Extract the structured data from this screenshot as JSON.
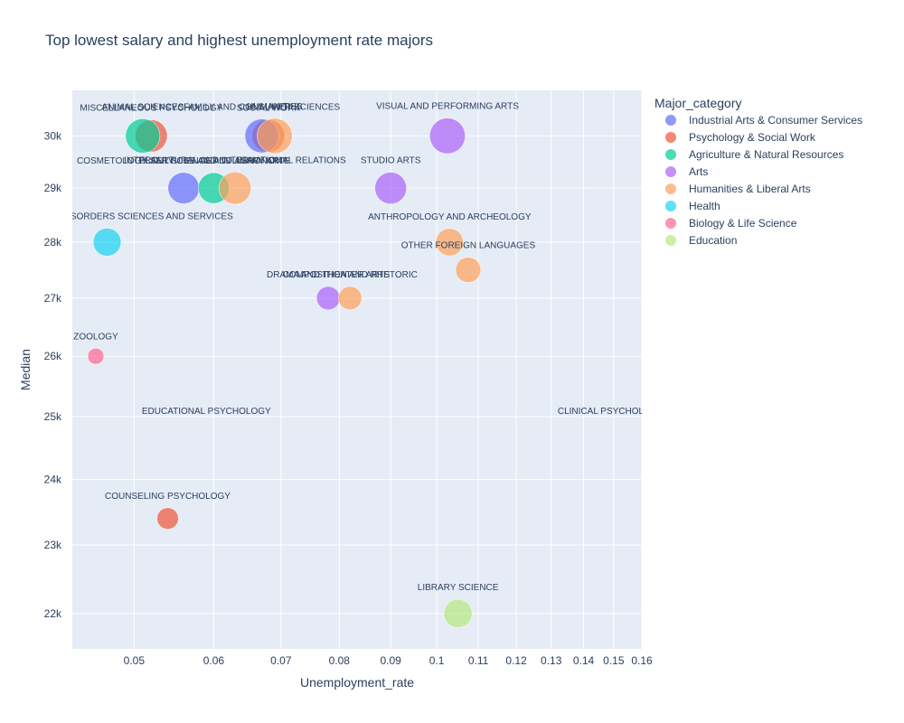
{
  "chart_data": {
    "type": "scatter",
    "title": "Top lowest salary and highest unemployment rate majors",
    "xlabel": "Unemployment_rate",
    "ylabel": "Median",
    "x_scale": "log",
    "y_scale": "log",
    "xlim": [
      0.0434,
      0.16
    ],
    "ylim": [
      21500,
      30900
    ],
    "x_ticks": [
      0.05,
      0.06,
      0.07,
      0.08,
      0.09,
      0.1,
      0.11,
      0.12,
      0.13,
      0.14,
      0.15,
      0.16
    ],
    "x_tick_labels": [
      "0.05",
      "0.06",
      "0.07",
      "0.08",
      "0.09",
      "0.1",
      "0.11",
      "0.12",
      "0.13",
      "0.14",
      "0.15",
      "0.16"
    ],
    "y_ticks": [
      22000,
      23000,
      24000,
      25000,
      26000,
      27000,
      28000,
      29000,
      30000
    ],
    "y_tick_labels": [
      "22k",
      "23k",
      "24k",
      "25k",
      "26k",
      "27k",
      "28k",
      "29k",
      "30k"
    ],
    "legend": {
      "title": "Major_category",
      "placement": "right",
      "entries": [
        {
          "name": "Industrial Arts & Consumer Services",
          "color": "#636efa"
        },
        {
          "name": "Psychology & Social Work",
          "color": "#ef553b"
        },
        {
          "name": "Agriculture & Natural Resources",
          "color": "#00cc96"
        },
        {
          "name": "Arts",
          "color": "#ab63fa"
        },
        {
          "name": "Humanities & Liberal Arts",
          "color": "#ffa15a"
        },
        {
          "name": "Health",
          "color": "#19d3f3"
        },
        {
          "name": "Biology & Life Science",
          "color": "#ff6692"
        },
        {
          "name": "Education",
          "color": "#b6e880"
        }
      ]
    },
    "points": [
      {
        "label": "MISCELLANEOUS PSYCHOLOGY",
        "category": "Psychology & Social Work",
        "x": 0.052,
        "y": 30000,
        "size": 0.72
      },
      {
        "label": "ANIMAL SCIENCES",
        "category": "Agriculture & Natural Resources",
        "x": 0.051,
        "y": 30000,
        "size": 0.82
      },
      {
        "label": "SOCIAL WORK",
        "category": "Psychology & Social Work",
        "x": 0.068,
        "y": 30000,
        "size": 0.74
      },
      {
        "label": "FAMILY AND CONSUMER SCIENCES",
        "category": "Industrial Arts & Consumer Services",
        "x": 0.067,
        "y": 30000,
        "size": 0.8
      },
      {
        "label": "HUMANITIES",
        "category": "Humanities & Liberal Arts",
        "x": 0.069,
        "y": 30000,
        "size": 0.86
      },
      {
        "label": "VISUAL AND PERFORMING ARTS",
        "category": "Arts",
        "x": 0.1025,
        "y": 30000,
        "size": 0.88
      },
      {
        "label": "COSMETOLOGY SERVICES AND CULINARY ARTS",
        "category": "Industrial Arts & Consumer Services",
        "x": 0.056,
        "y": 29000,
        "size": 0.68
      },
      {
        "label": "PLANT SCIENCE AND AGRONOMY",
        "category": "Agriculture & Natural Resources",
        "x": 0.06,
        "y": 29000,
        "size": 0.66
      },
      {
        "label": "INTERCULTURAL AND INTERNATIONAL RELATIONS",
        "category": "Humanities & Liberal Arts",
        "x": 0.063,
        "y": 29000,
        "size": 0.72
      },
      {
        "label": "STUDIO ARTS",
        "category": "Arts",
        "x": 0.09,
        "y": 29000,
        "size": 0.7
      },
      {
        "label": "COMMUNICATION DISORDERS SCIENCES AND SERVICES",
        "category": "Health",
        "x": 0.047,
        "y": 28000,
        "size": 0.54
      },
      {
        "label": "ANTHROPOLOGY AND ARCHEOLOGY",
        "category": "Humanities & Liberal Arts",
        "x": 0.103,
        "y": 28000,
        "size": 0.52
      },
      {
        "label": "OTHER FOREIGN LANGUAGES",
        "category": "Humanities & Liberal Arts",
        "x": 0.1075,
        "y": 27500,
        "size": 0.44
      },
      {
        "label": "DRAMA AND THEATER ARTS",
        "category": "Arts",
        "x": 0.078,
        "y": 27000,
        "size": 0.38
      },
      {
        "label": "COMPOSITION AND RHETORIC",
        "category": "Humanities & Liberal Arts",
        "x": 0.082,
        "y": 27000,
        "size": 0.38
      },
      {
        "label": "ZOOLOGY",
        "category": "Biology & Life Science",
        "x": 0.0458,
        "y": 26000,
        "size": 0.18
      },
      {
        "label": "EDUCATIONAL PSYCHOLOGY",
        "category": "Psychology & Social Work",
        "x": 0.059,
        "y": 25000,
        "size": 0
      },
      {
        "label": "CLINICAL PSYCHOLOGY",
        "category": "Psychology & Social Work",
        "x": 0.149,
        "y": 25000,
        "size": 0
      },
      {
        "label": "COUNSELING PSYCHOLOGY",
        "category": "Psychology & Social Work",
        "x": 0.054,
        "y": 23400,
        "size": 0.32
      },
      {
        "label": "LIBRARY SCIENCE",
        "category": "Education",
        "x": 0.105,
        "y": 22000,
        "size": 0.56
      }
    ]
  }
}
